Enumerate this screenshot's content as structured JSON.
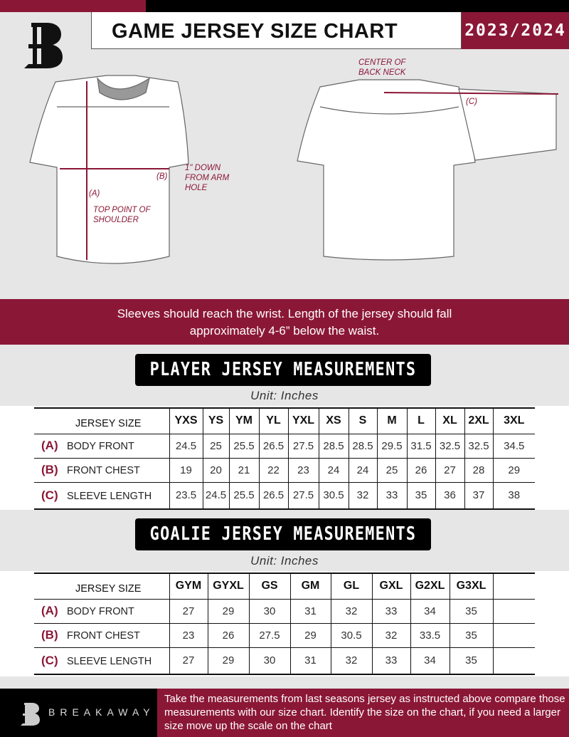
{
  "header": {
    "title": "GAME JERSEY SIZE CHART",
    "season": "2023/2024"
  },
  "colors": {
    "accent": "#8b1736",
    "dark": "#000000",
    "background": "#e6e6e7"
  },
  "diagram": {
    "front_labels": {
      "a": "(A)",
      "a_desc": "TOP POINT OF SHOULDER",
      "b": "(B)",
      "b_desc": "1\" DOWN FROM ARM HOLE"
    },
    "back_labels": {
      "center": "CENTER OF BACK NECK",
      "c": "(C)"
    }
  },
  "instructions": "Sleeves should reach the wrist. Length of the jersey should fall approximately 4-6” below the waist.",
  "player": {
    "title": "PLAYER JERSEY MEASUREMENTS",
    "unit": "Unit: Inches",
    "size_header": "JERSEY SIZE",
    "sizes": [
      "YXS",
      "YS",
      "YM",
      "YL",
      "YXL",
      "XS",
      "S",
      "M",
      "L",
      "XL",
      "2XL",
      "3XL"
    ],
    "rows": [
      {
        "code": "(A)",
        "label": "BODY FRONT",
        "values": [
          "24.5",
          "25",
          "25.5",
          "26.5",
          "27.5",
          "28.5",
          "28.5",
          "29.5",
          "31.5",
          "32.5",
          "32.5",
          "34.5"
        ]
      },
      {
        "code": "(B)",
        "label": "FRONT CHEST",
        "values": [
          "19",
          "20",
          "21",
          "22",
          "23",
          "24",
          "24",
          "25",
          "26",
          "27",
          "28",
          "29"
        ]
      },
      {
        "code": "(C)",
        "label": "SLEEVE LENGTH",
        "values": [
          "23.5",
          "24.5",
          "25.5",
          "26.5",
          "27.5",
          "30.5",
          "32",
          "33",
          "35",
          "36",
          "37",
          "38"
        ]
      }
    ]
  },
  "goalie": {
    "title": "GOALIE JERSEY MEASUREMENTS",
    "unit": "Unit: Inches",
    "size_header": "JERSEY SIZE",
    "sizes": [
      "GYM",
      "GYXL",
      "GS",
      "GM",
      "GL",
      "GXL",
      "G2XL",
      "G3XL",
      ""
    ],
    "rows": [
      {
        "code": "(A)",
        "label": "BODY FRONT",
        "values": [
          "27",
          "29",
          "30",
          "31",
          "32",
          "33",
          "34",
          "35",
          ""
        ]
      },
      {
        "code": "(B)",
        "label": "FRONT CHEST",
        "values": [
          "23",
          "26",
          "27.5",
          "29",
          "30.5",
          "32",
          "33.5",
          "35",
          ""
        ]
      },
      {
        "code": "(C)",
        "label": "SLEEVE LENGTH",
        "values": [
          "27",
          "29",
          "30",
          "31",
          "32",
          "33",
          "34",
          "35",
          ""
        ]
      }
    ]
  },
  "footer": {
    "brand": "BREAKAWAY",
    "text": "Take the measurements from last seasons jersey as instructed above compare those measurements  with our size chart. Identify the size on the chart, if you need a larger size move up the scale on the chart"
  }
}
